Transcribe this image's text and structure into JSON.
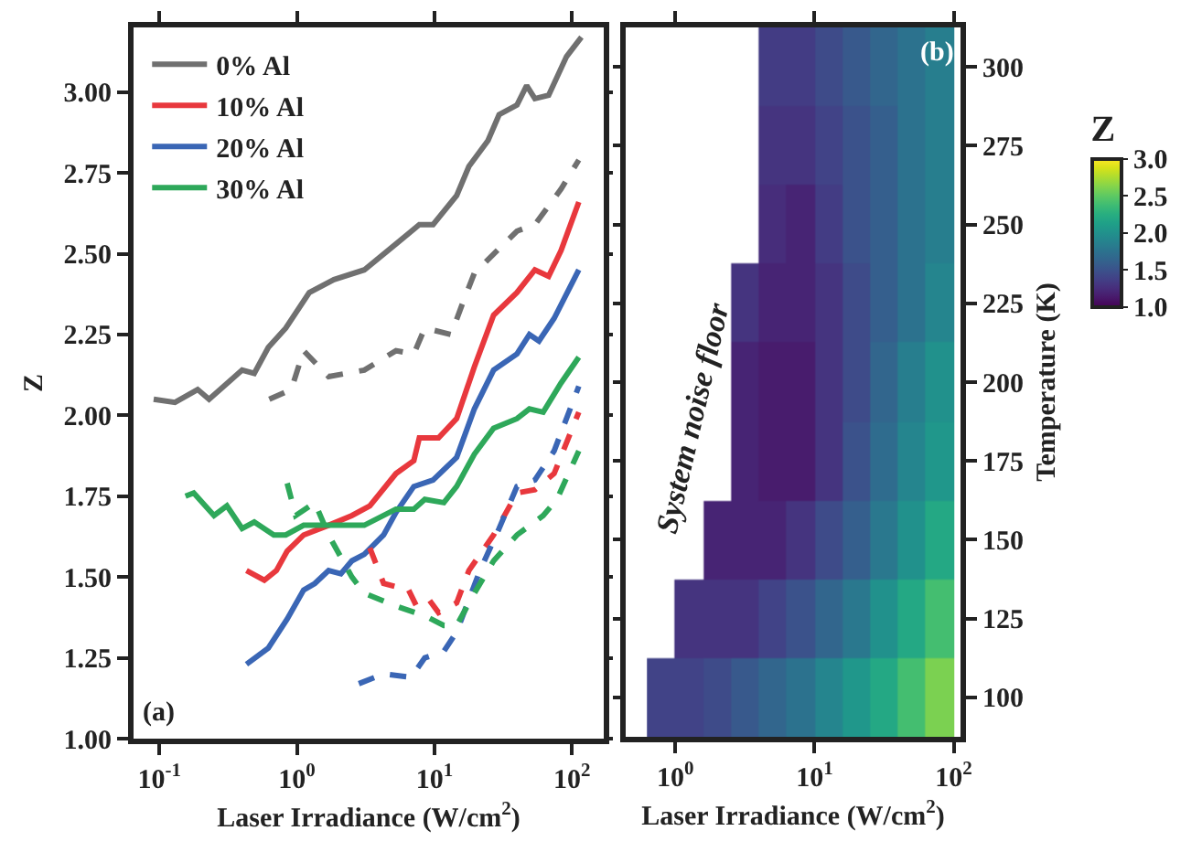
{
  "chart_data": [
    {
      "type": "line",
      "xlabel": "Laser Irradiance (W/cm$^{2}$)",
      "ylabel": "Z",
      "log": "x",
      "xlim": [
        0.065,
        170
      ],
      "xticks": [
        {
          "value": 0.1,
          "label": "10$^{-1}$"
        },
        {
          "value": 1,
          "label": "10$^{0}$"
        },
        {
          "value": 10,
          "label": "10$^{1}$"
        },
        {
          "value": 100,
          "label": "10$^{2}$"
        }
      ],
      "ylim": [
        1.0,
        3.2
      ],
      "yticks": [
        {
          "value": 1,
          "label": "1.00"
        },
        {
          "value": 1.25,
          "label": "1.25"
        },
        {
          "value": 1.5,
          "label": "1.50"
        },
        {
          "value": 1.75,
          "label": "1.75"
        },
        {
          "value": 2,
          "label": "2.00"
        },
        {
          "value": 2.25,
          "label": "2.25"
        },
        {
          "value": 2.5,
          "label": "2.50"
        },
        {
          "value": 2.75,
          "label": "2.75"
        },
        {
          "value": 3,
          "label": "3.00"
        }
      ],
      "grid": false,
      "legend": "top left",
      "annotations": [
        "(a)"
      ],
      "series": [
        {
          "name": "0% Al",
          "color": "#707070",
          "line_style": "solid",
          "x": [
            0.091,
            0.13,
            0.19,
            0.23,
            0.4,
            0.49,
            0.62,
            0.83,
            1.23,
            1.86,
            3.09,
            5.25,
            7.76,
            9.77,
            14.5,
            17.8,
            24.5,
            29.5,
            39.8,
            46.8,
            53.7,
            67.6,
            91.2,
            117
          ],
          "values": [
            2.05,
            2.04,
            2.08,
            2.05,
            2.14,
            2.13,
            2.21,
            2.27,
            2.38,
            2.42,
            2.45,
            2.53,
            2.59,
            2.59,
            2.68,
            2.77,
            2.85,
            2.93,
            2.96,
            3.02,
            2.98,
            2.99,
            3.11,
            3.17
          ]
        },
        {
          "name": "10% Al",
          "color": "#e8383d",
          "line_style": "solid",
          "x": [
            0.43,
            0.58,
            0.71,
            0.85,
            1.12,
            1.7,
            2.51,
            3.39,
            5.25,
            7.08,
            7.76,
            10.7,
            14.5,
            19.5,
            26.9,
            39.8,
            53.7,
            67.6,
            83.2,
            112
          ],
          "values": [
            1.52,
            1.49,
            1.52,
            1.58,
            1.63,
            1.66,
            1.69,
            1.72,
            1.82,
            1.86,
            1.93,
            1.93,
            1.99,
            2.15,
            2.31,
            2.38,
            2.45,
            2.43,
            2.51,
            2.66
          ]
        },
        {
          "name": "20% Al",
          "color": "#3a66b5",
          "line_style": "solid",
          "x": [
            0.43,
            0.62,
            0.85,
            1.12,
            1.35,
            1.7,
            2.09,
            2.51,
            3.09,
            4.27,
            5.25,
            7.08,
            9.77,
            14.5,
            19.5,
            26.9,
            39.8,
            49.0,
            57.5,
            74.1,
            112
          ],
          "values": [
            1.23,
            1.28,
            1.37,
            1.46,
            1.48,
            1.52,
            1.51,
            1.55,
            1.57,
            1.63,
            1.7,
            1.78,
            1.8,
            1.87,
            2.02,
            2.14,
            2.19,
            2.25,
            2.23,
            2.3,
            2.45
          ]
        },
        {
          "name": "30% Al",
          "color": "#2ea85a",
          "line_style": "solid",
          "x": [
            0.155,
            0.178,
            0.25,
            0.31,
            0.4,
            0.49,
            0.68,
            0.83,
            1.12,
            1.7,
            3.09,
            5.25,
            7.08,
            8.51,
            11.7,
            14.5,
            19.5,
            26.9,
            39.8,
            49.0,
            61.7,
            83.2,
            112
          ],
          "values": [
            1.75,
            1.76,
            1.69,
            1.72,
            1.65,
            1.67,
            1.63,
            1.63,
            1.66,
            1.66,
            1.66,
            1.71,
            1.71,
            1.74,
            1.73,
            1.78,
            1.88,
            1.96,
            1.99,
            2.02,
            2.01,
            2.1,
            2.18
          ]
        },
        {
          "color": "#707070",
          "line_style": "dashed",
          "x": [
            0.63,
            0.91,
            1.12,
            1.7,
            3.09,
            5.25,
            7.08,
            8.51,
            13.2,
            15.8,
            19.5,
            39.8,
            53.7,
            83.2,
            112
          ],
          "values": [
            2.05,
            2.08,
            2.2,
            2.12,
            2.14,
            2.2,
            2.19,
            2.27,
            2.25,
            2.34,
            2.44,
            2.57,
            2.59,
            2.7,
            2.79
          ]
        },
        {
          "color": "#e8383d",
          "line_style": "dashed",
          "x": [
            3.39,
            4.27,
            5.25,
            6.31,
            7.41,
            9.12,
            10.7,
            14.5,
            17.8,
            26.9,
            39.8,
            53.7,
            74.1,
            112
          ],
          "values": [
            1.59,
            1.48,
            1.47,
            1.47,
            1.41,
            1.43,
            1.39,
            1.42,
            1.52,
            1.63,
            1.76,
            1.77,
            1.82,
            2.01
          ]
        },
        {
          "color": "#3a66b5",
          "line_style": "dashed",
          "x": [
            2.82,
            4.27,
            6.76,
            8.51,
            11.7,
            14.5,
            21.4,
            29.5,
            39.8,
            53.7,
            74.1,
            112
          ],
          "values": [
            1.17,
            1.2,
            1.19,
            1.25,
            1.27,
            1.33,
            1.52,
            1.65,
            1.78,
            1.8,
            1.89,
            2.09
          ]
        },
        {
          "color": "#2ea85a",
          "line_style": "dashed",
          "x": [
            0.85,
            0.98,
            1.35,
            1.7,
            2.51,
            3.09,
            5.25,
            8.51,
            11.7,
            14.5,
            19.5,
            26.9,
            39.8,
            61.7,
            77.6,
            112
          ],
          "values": [
            1.79,
            1.69,
            1.73,
            1.63,
            1.5,
            1.45,
            1.41,
            1.38,
            1.35,
            1.35,
            1.45,
            1.55,
            1.63,
            1.69,
            1.74,
            1.89
          ]
        }
      ]
    },
    {
      "type": "heatmap",
      "xlabel": "Laser Irradiance (W/cm$^{2}$)",
      "ylabel": "Temperature (K)",
      "clabel": "Z",
      "log": "x",
      "xlim": [
        0.44,
        112
      ],
      "xticks": [
        {
          "value": 1,
          "label": "10$^{0}$"
        },
        {
          "value": 10,
          "label": "10$^{1}$"
        },
        {
          "value": 100,
          "label": "10$^{2}$"
        }
      ],
      "clim": [
        1,
        3
      ],
      "cticks": [
        {
          "value": 1,
          "label": "1.0"
        },
        {
          "value": 1.5,
          "label": "1.5"
        },
        {
          "value": 2,
          "label": "2.0"
        },
        {
          "value": 2.5,
          "label": "2.5"
        },
        {
          "value": 3,
          "label": "3.0"
        }
      ],
      "annotations": [
        "(b)",
        "System noise floor"
      ],
      "x": [
        0.79,
        1.26,
        2.0,
        3.16,
        5.0,
        7.94,
        12.6,
        20,
        31.6,
        50,
        79.4
      ],
      "y_categories": [
        "300",
        "275",
        "250",
        "225",
        "200",
        "175",
        "150",
        "125",
        "100"
      ],
      "cells": [
        [
          null,
          null,
          null,
          null,
          1.35,
          1.35,
          1.45,
          1.55,
          1.65,
          1.75,
          1.85
        ],
        [
          null,
          null,
          null,
          null,
          1.3,
          1.3,
          1.4,
          1.5,
          1.6,
          1.75,
          1.85
        ],
        [
          null,
          null,
          null,
          null,
          1.25,
          1.2,
          1.35,
          1.5,
          1.6,
          1.75,
          1.85
        ],
        [
          null,
          null,
          null,
          1.3,
          1.2,
          1.2,
          1.3,
          1.45,
          1.6,
          1.75,
          1.9
        ],
        [
          null,
          null,
          null,
          1.2,
          1.15,
          1.15,
          1.3,
          1.45,
          1.65,
          1.85,
          2.0
        ],
        [
          null,
          null,
          null,
          1.2,
          1.15,
          1.15,
          1.3,
          1.5,
          1.7,
          1.9,
          2.05
        ],
        [
          null,
          null,
          1.2,
          1.2,
          1.2,
          1.3,
          1.45,
          1.6,
          1.8,
          2.0,
          2.2
        ],
        [
          null,
          1.3,
          1.3,
          1.3,
          1.4,
          1.5,
          1.65,
          1.8,
          2.0,
          2.2,
          2.4
        ],
        [
          1.4,
          1.4,
          1.45,
          1.55,
          1.65,
          1.75,
          1.9,
          2.05,
          2.2,
          2.4,
          2.6
        ]
      ]
    }
  ]
}
